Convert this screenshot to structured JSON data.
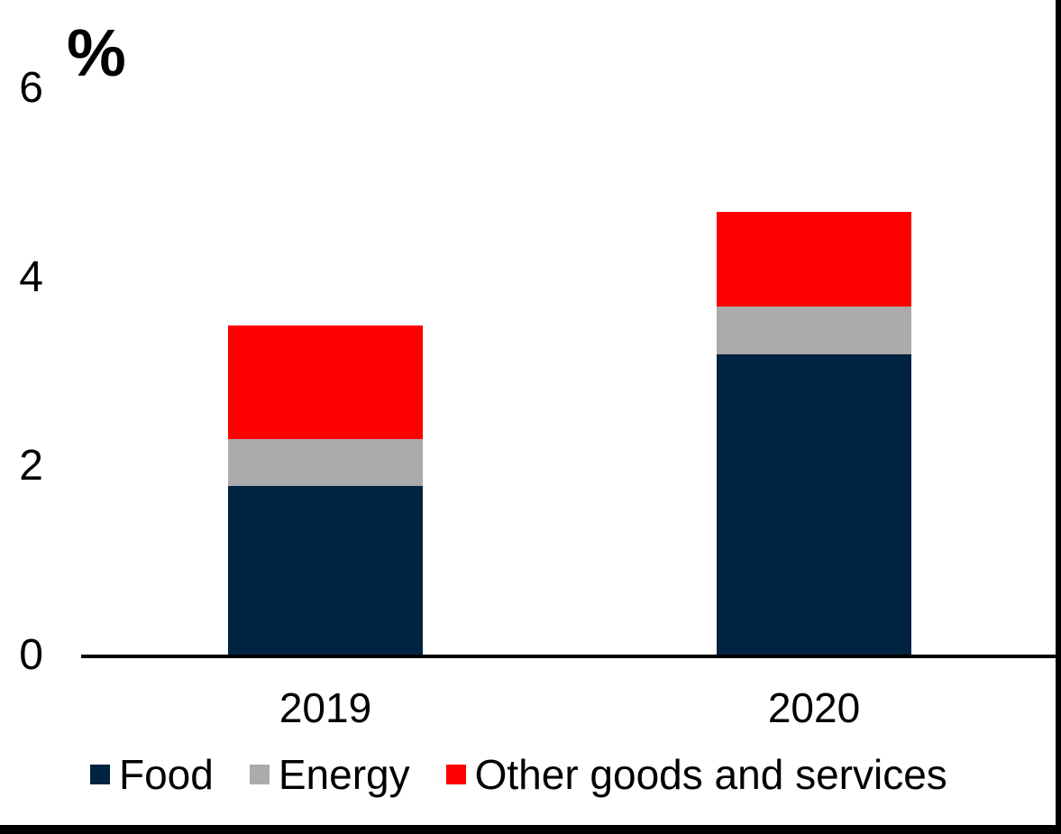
{
  "figure": {
    "background": "#FFFFFF",
    "frame_color": "#000000",
    "axis_color": "#000000",
    "text_color": "#000000"
  },
  "chart_data": {
    "type": "bar",
    "stacked": true,
    "title": "",
    "xlabel": "",
    "ylabel": "%",
    "categories": [
      "2019",
      "2020"
    ],
    "series": [
      {
        "name": "Food",
        "color": "#002342",
        "values": [
          1.8,
          3.2
        ]
      },
      {
        "name": "Energy",
        "color": "#ACAAAB",
        "values": [
          0.5,
          0.5
        ]
      },
      {
        "name": "Other goods and services",
        "color": "#FF0000",
        "values": [
          1.2,
          1.0
        ]
      }
    ],
    "totals": [
      3.5,
      4.7
    ],
    "y_axis": {
      "ticks": [
        0,
        2,
        4,
        6
      ],
      "range": [
        0,
        6.2
      ],
      "unit": "%"
    },
    "x_axis": {
      "tick_labels": [
        "2019",
        "2020"
      ]
    },
    "grid": false,
    "legend": {
      "position": "bottom",
      "entries": [
        "Food",
        "Energy",
        "Other goods and services"
      ]
    }
  }
}
